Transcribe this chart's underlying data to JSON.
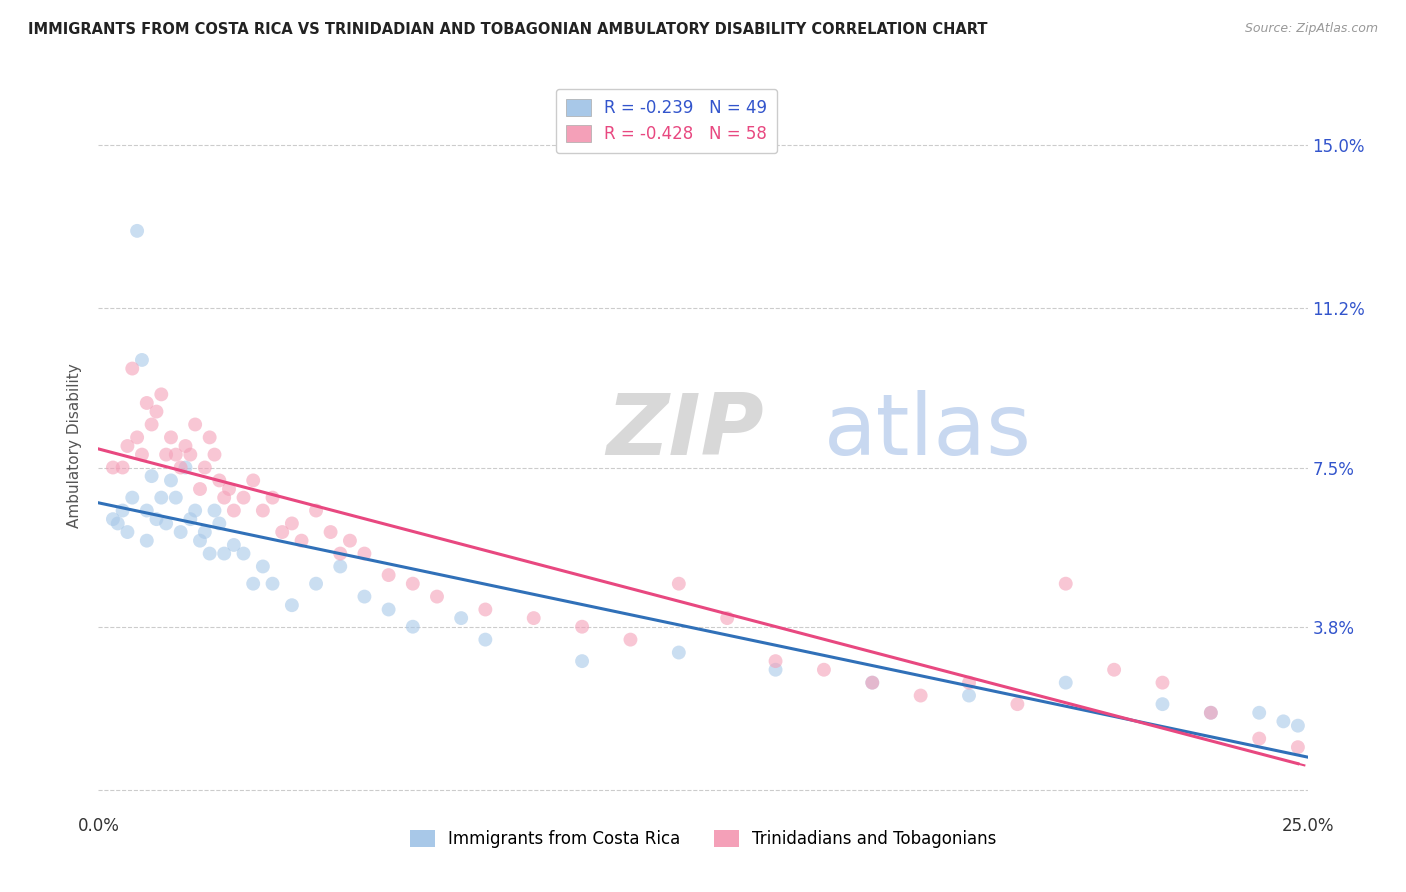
{
  "title": "IMMIGRANTS FROM COSTA RICA VS TRINIDADIAN AND TOBAGONIAN AMBULATORY DISABILITY CORRELATION CHART",
  "source": "Source: ZipAtlas.com",
  "ylabel": "Ambulatory Disability",
  "yticks": [
    0.0,
    0.038,
    0.075,
    0.112,
    0.15
  ],
  "ytick_labels": [
    "",
    "3.8%",
    "7.5%",
    "11.2%",
    "15.0%"
  ],
  "xlim": [
    0.0,
    0.25
  ],
  "ylim": [
    -0.005,
    0.165
  ],
  "watermark_zip": "ZIP",
  "watermark_atlas": "atlas",
  "color_blue": "#a8c8e8",
  "color_pink": "#f4a0b8",
  "trendline_blue": "#3070b8",
  "trendline_pink": "#e84880",
  "costa_rica_x": [
    0.003,
    0.004,
    0.005,
    0.006,
    0.007,
    0.008,
    0.009,
    0.01,
    0.01,
    0.011,
    0.012,
    0.013,
    0.014,
    0.015,
    0.016,
    0.017,
    0.018,
    0.019,
    0.02,
    0.021,
    0.022,
    0.023,
    0.024,
    0.025,
    0.026,
    0.028,
    0.03,
    0.032,
    0.034,
    0.036,
    0.04,
    0.045,
    0.05,
    0.055,
    0.06,
    0.065,
    0.075,
    0.08,
    0.1,
    0.12,
    0.14,
    0.16,
    0.18,
    0.2,
    0.22,
    0.23,
    0.24,
    0.245,
    0.248
  ],
  "costa_rica_y": [
    0.063,
    0.062,
    0.065,
    0.06,
    0.068,
    0.13,
    0.1,
    0.065,
    0.058,
    0.073,
    0.063,
    0.068,
    0.062,
    0.072,
    0.068,
    0.06,
    0.075,
    0.063,
    0.065,
    0.058,
    0.06,
    0.055,
    0.065,
    0.062,
    0.055,
    0.057,
    0.055,
    0.048,
    0.052,
    0.048,
    0.043,
    0.048,
    0.052,
    0.045,
    0.042,
    0.038,
    0.04,
    0.035,
    0.03,
    0.032,
    0.028,
    0.025,
    0.022,
    0.025,
    0.02,
    0.018,
    0.018,
    0.016,
    0.015
  ],
  "trini_x": [
    0.003,
    0.005,
    0.006,
    0.007,
    0.008,
    0.009,
    0.01,
    0.011,
    0.012,
    0.013,
    0.014,
    0.015,
    0.016,
    0.017,
    0.018,
    0.019,
    0.02,
    0.021,
    0.022,
    0.023,
    0.024,
    0.025,
    0.026,
    0.027,
    0.028,
    0.03,
    0.032,
    0.034,
    0.036,
    0.038,
    0.04,
    0.042,
    0.045,
    0.048,
    0.05,
    0.052,
    0.055,
    0.06,
    0.065,
    0.07,
    0.08,
    0.09,
    0.1,
    0.11,
    0.12,
    0.13,
    0.14,
    0.15,
    0.16,
    0.17,
    0.18,
    0.19,
    0.2,
    0.21,
    0.22,
    0.23,
    0.24,
    0.248
  ],
  "trini_y": [
    0.075,
    0.075,
    0.08,
    0.098,
    0.082,
    0.078,
    0.09,
    0.085,
    0.088,
    0.092,
    0.078,
    0.082,
    0.078,
    0.075,
    0.08,
    0.078,
    0.085,
    0.07,
    0.075,
    0.082,
    0.078,
    0.072,
    0.068,
    0.07,
    0.065,
    0.068,
    0.072,
    0.065,
    0.068,
    0.06,
    0.062,
    0.058,
    0.065,
    0.06,
    0.055,
    0.058,
    0.055,
    0.05,
    0.048,
    0.045,
    0.042,
    0.04,
    0.038,
    0.035,
    0.048,
    0.04,
    0.03,
    0.028,
    0.025,
    0.022,
    0.025,
    0.02,
    0.048,
    0.028,
    0.025,
    0.018,
    0.012,
    0.01
  ]
}
